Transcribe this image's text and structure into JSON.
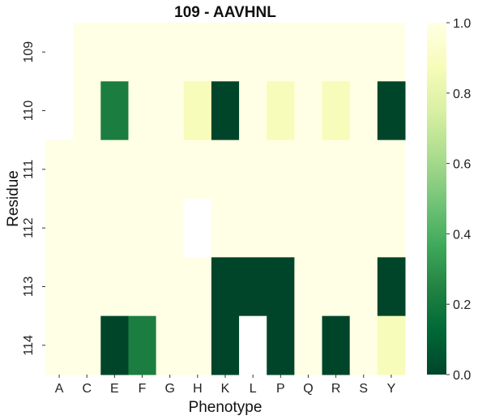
{
  "chart_data": {
    "type": "heatmap",
    "title": "109 - AAVHNL",
    "xlabel": "Phenotype",
    "ylabel": "Residue",
    "x_categories": [
      "A",
      "C",
      "E",
      "F",
      "G",
      "H",
      "K",
      "L",
      "P",
      "Q",
      "R",
      "S",
      "Y"
    ],
    "y_categories": [
      "109",
      "110",
      "111",
      "112",
      "113",
      "114"
    ],
    "values": [
      [
        null,
        1.0,
        1.0,
        1.0,
        1.0,
        1.0,
        1.0,
        1.0,
        1.0,
        1.0,
        1.0,
        1.0,
        1.0
      ],
      [
        null,
        1.0,
        0.22,
        1.0,
        1.0,
        0.88,
        0.0,
        1.0,
        0.88,
        1.0,
        0.88,
        1.0,
        0.0
      ],
      [
        1.0,
        1.0,
        1.0,
        1.0,
        1.0,
        1.0,
        1.0,
        1.0,
        1.0,
        1.0,
        1.0,
        1.0,
        1.0
      ],
      [
        1.0,
        1.0,
        1.0,
        1.0,
        1.0,
        null,
        1.0,
        1.0,
        1.0,
        1.0,
        1.0,
        1.0,
        1.0
      ],
      [
        1.0,
        1.0,
        1.0,
        1.0,
        1.0,
        1.0,
        0.0,
        0.0,
        0.0,
        1.0,
        1.0,
        1.0,
        0.0
      ],
      [
        1.0,
        1.0,
        0.0,
        0.22,
        1.0,
        1.0,
        0.0,
        null,
        0.0,
        1.0,
        0.0,
        1.0,
        0.88
      ]
    ],
    "colorbar": {
      "colormap": "YlGn_r",
      "vmin": 0.0,
      "vmax": 1.0,
      "tick_labels": [
        "0.0",
        "0.2",
        "0.4",
        "0.6",
        "0.8",
        "1.0"
      ]
    },
    "colors": {
      "low": "#004529",
      "mid_low": "#238443",
      "high": "#ffffe5",
      "missing": "#ffffff"
    }
  }
}
